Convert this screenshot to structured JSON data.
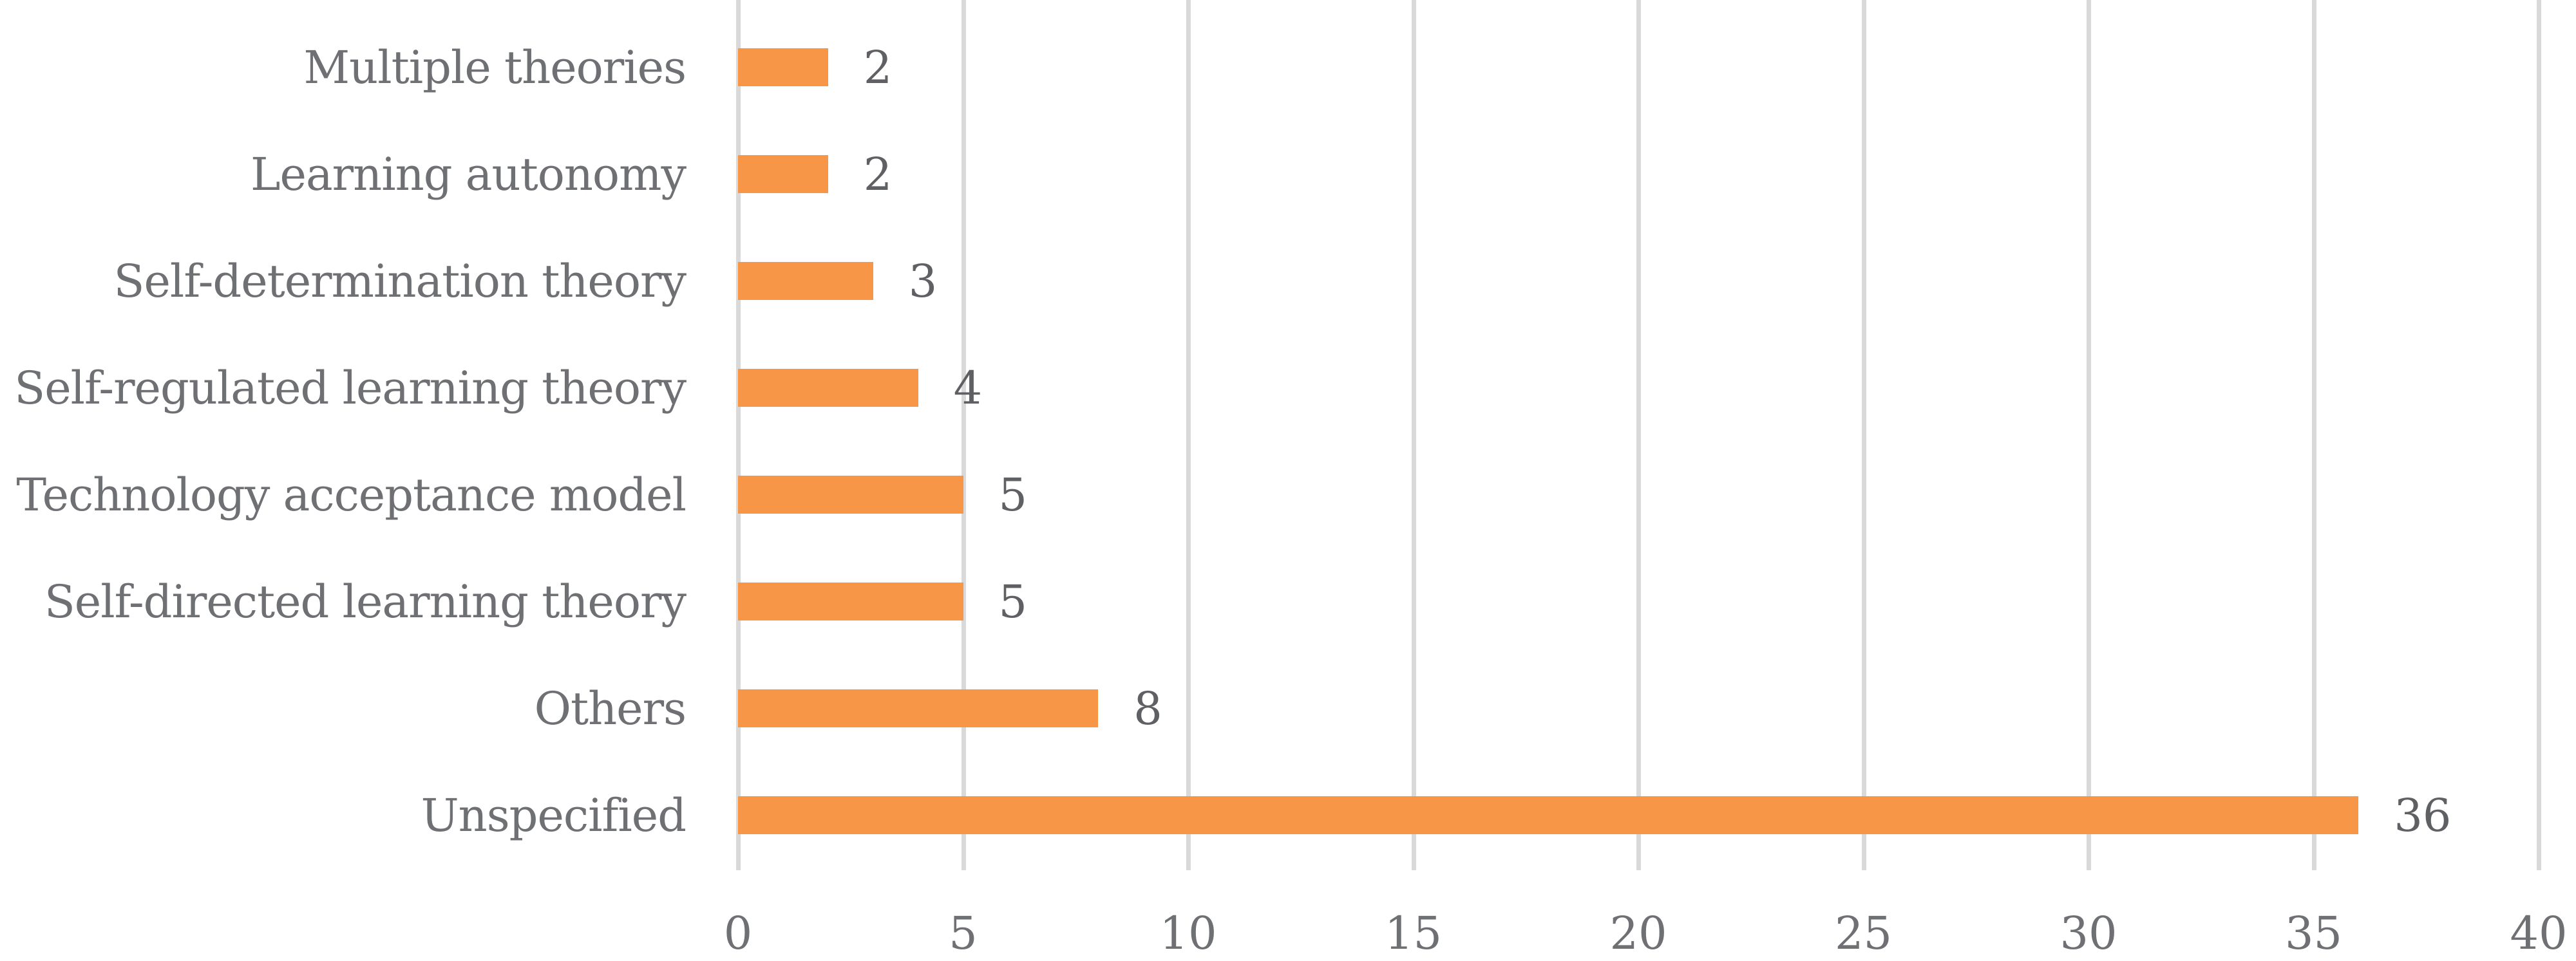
{
  "chart_data": {
    "type": "bar",
    "orientation": "horizontal",
    "title": "",
    "xlabel": "",
    "ylabel": "",
    "categories": [
      "Multiple theories",
      "Learning autonomy",
      "Self-determination theory",
      "Self-regulated learning theory",
      "Technology acceptance model",
      "Self-directed learning theory",
      "Others",
      "Unspecified"
    ],
    "values": [
      2,
      2,
      3,
      4,
      5,
      5,
      8,
      36
    ],
    "data_labels": [
      "2",
      "2",
      "3",
      "4",
      "5",
      "5",
      "8",
      "36"
    ],
    "xlim": [
      0,
      40
    ],
    "x_ticks": [
      "0",
      "5",
      "10",
      "15",
      "20",
      "25",
      "30",
      "35",
      "40"
    ],
    "grid": "vertical",
    "legend": "none",
    "bar_color": "#F79646"
  }
}
